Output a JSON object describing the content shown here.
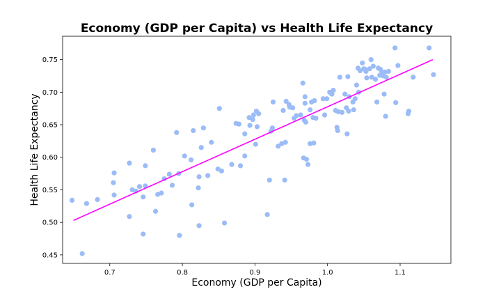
{
  "chart_data": {
    "type": "scatter",
    "title": "Economy (GDP per Capita) vs Health Life Expectancy",
    "xlabel": "Economy (GDP per Capita)",
    "ylabel": "Health Life Expectancy",
    "xlim": [
      0.635,
      1.17
    ],
    "ylim": [
      0.437,
      0.786
    ],
    "xticks": [
      0.7,
      0.8,
      0.9,
      1.0,
      1.1
    ],
    "xtick_labels": [
      "0.7",
      "0.8",
      "0.9",
      "1.0",
      "1.1"
    ],
    "yticks": [
      0.45,
      0.5,
      0.55,
      0.6,
      0.65,
      0.7,
      0.75
    ],
    "ytick_labels": [
      "0.45",
      "0.50",
      "0.55",
      "0.60",
      "0.65",
      "0.70",
      "0.75"
    ],
    "grid": false,
    "point_color": "#9bbcf7",
    "trendline": {
      "color": "#ff00ff",
      "x": [
        0.65,
        1.145
      ],
      "y": [
        0.503,
        0.75
      ]
    },
    "points": [
      [
        0.648,
        0.534
      ],
      [
        0.662,
        0.452
      ],
      [
        0.668,
        0.529
      ],
      [
        0.683,
        0.535
      ],
      [
        0.705,
        0.561
      ],
      [
        0.706,
        0.576
      ],
      [
        0.706,
        0.542
      ],
      [
        0.727,
        0.591
      ],
      [
        0.727,
        0.509
      ],
      [
        0.731,
        0.55
      ],
      [
        0.736,
        0.548
      ],
      [
        0.741,
        0.555
      ],
      [
        0.746,
        0.539
      ],
      [
        0.746,
        0.482
      ],
      [
        0.749,
        0.556
      ],
      [
        0.749,
        0.587
      ],
      [
        0.76,
        0.611
      ],
      [
        0.763,
        0.517
      ],
      [
        0.766,
        0.543
      ],
      [
        0.771,
        0.545
      ],
      [
        0.775,
        0.567
      ],
      [
        0.782,
        0.574
      ],
      [
        0.786,
        0.557
      ],
      [
        0.792,
        0.638
      ],
      [
        0.795,
        0.575
      ],
      [
        0.796,
        0.48
      ],
      [
        0.803,
        0.602
      ],
      [
        0.812,
        0.596
      ],
      [
        0.813,
        0.527
      ],
      [
        0.815,
        0.641
      ],
      [
        0.822,
        0.553
      ],
      [
        0.823,
        0.57
      ],
      [
        0.823,
        0.495
      ],
      [
        0.826,
        0.615
      ],
      [
        0.829,
        0.645
      ],
      [
        0.835,
        0.572
      ],
      [
        0.84,
        0.623
      ],
      [
        0.849,
        0.582
      ],
      [
        0.851,
        0.675
      ],
      [
        0.854,
        0.579
      ],
      [
        0.858,
        0.499
      ],
      [
        0.868,
        0.589
      ],
      [
        0.874,
        0.652
      ],
      [
        0.878,
        0.651
      ],
      [
        0.88,
        0.587
      ],
      [
        0.886,
        0.636
      ],
      [
        0.886,
        0.602
      ],
      [
        0.892,
        0.661
      ],
      [
        0.893,
        0.649
      ],
      [
        0.897,
        0.658
      ],
      [
        0.898,
        0.665
      ],
      [
        0.901,
        0.62
      ],
      [
        0.902,
        0.671
      ],
      [
        0.903,
        0.647
      ],
      [
        0.905,
        0.667
      ],
      [
        0.917,
        0.512
      ],
      [
        0.92,
        0.565
      ],
      [
        0.922,
        0.64
      ],
      [
        0.924,
        0.645
      ],
      [
        0.925,
        0.685
      ],
      [
        0.932,
        0.617
      ],
      [
        0.937,
        0.621
      ],
      [
        0.939,
        0.672
      ],
      [
        0.941,
        0.565
      ],
      [
        0.942,
        0.623
      ],
      [
        0.943,
        0.686
      ],
      [
        0.947,
        0.681
      ],
      [
        0.948,
        0.677
      ],
      [
        0.952,
        0.676
      ],
      [
        0.954,
        0.66
      ],
      [
        0.957,
        0.664
      ],
      [
        0.963,
        0.665
      ],
      [
        0.966,
        0.714
      ],
      [
        0.967,
        0.599
      ],
      [
        0.968,
        0.657
      ],
      [
        0.969,
        0.693
      ],
      [
        0.969,
        0.683
      ],
      [
        0.97,
        0.654
      ],
      [
        0.971,
        0.597
      ],
      [
        0.973,
        0.589
      ],
      [
        0.976,
        0.673
      ],
      [
        0.976,
        0.621
      ],
      [
        0.978,
        0.685
      ],
      [
        0.98,
        0.661
      ],
      [
        0.981,
        0.622
      ],
      [
        0.982,
        0.687
      ],
      [
        0.984,
        0.66
      ],
      [
        0.994,
        0.69
      ],
      [
        0.996,
        0.665
      ],
      [
        0.999,
        0.69
      ],
      [
        1.003,
        0.7
      ],
      [
        1.006,
        0.697
      ],
      [
        1.008,
        0.703
      ],
      [
        1.011,
        0.672
      ],
      [
        1.013,
        0.646
      ],
      [
        1.014,
        0.641
      ],
      [
        1.015,
        0.67
      ],
      [
        1.017,
        0.723
      ],
      [
        1.02,
        0.669
      ],
      [
        1.024,
        0.697
      ],
      [
        1.026,
        0.676
      ],
      [
        1.027,
        0.636
      ],
      [
        1.028,
        0.724
      ],
      [
        1.029,
        0.671
      ],
      [
        1.03,
        0.693
      ],
      [
        1.035,
        0.685
      ],
      [
        1.036,
        0.673
      ],
      [
        1.038,
        0.69
      ],
      [
        1.04,
        0.711
      ],
      [
        1.042,
        0.737
      ],
      [
        1.043,
        0.7
      ],
      [
        1.045,
        0.733
      ],
      [
        1.048,
        0.745
      ],
      [
        1.05,
        0.736
      ],
      [
        1.052,
        0.735
      ],
      [
        1.053,
        0.732
      ],
      [
        1.054,
        0.722
      ],
      [
        1.058,
        0.736
      ],
      [
        1.06,
        0.75
      ],
      [
        1.061,
        0.723
      ],
      [
        1.063,
        0.74
      ],
      [
        1.066,
        0.72
      ],
      [
        1.068,
        0.685
      ],
      [
        1.07,
        0.737
      ],
      [
        1.072,
        0.726
      ],
      [
        1.073,
        0.735
      ],
      [
        1.075,
        0.73
      ],
      [
        1.077,
        0.725
      ],
      [
        1.078,
        0.697
      ],
      [
        1.079,
        0.731
      ],
      [
        1.08,
        0.663
      ],
      [
        1.081,
        0.723
      ],
      [
        1.084,
        0.732
      ],
      [
        1.093,
        0.768
      ],
      [
        1.094,
        0.684
      ],
      [
        1.097,
        0.741
      ],
      [
        1.111,
        0.667
      ],
      [
        1.112,
        0.671
      ],
      [
        1.118,
        0.723
      ],
      [
        1.14,
        0.768
      ],
      [
        1.146,
        0.727
      ]
    ]
  }
}
